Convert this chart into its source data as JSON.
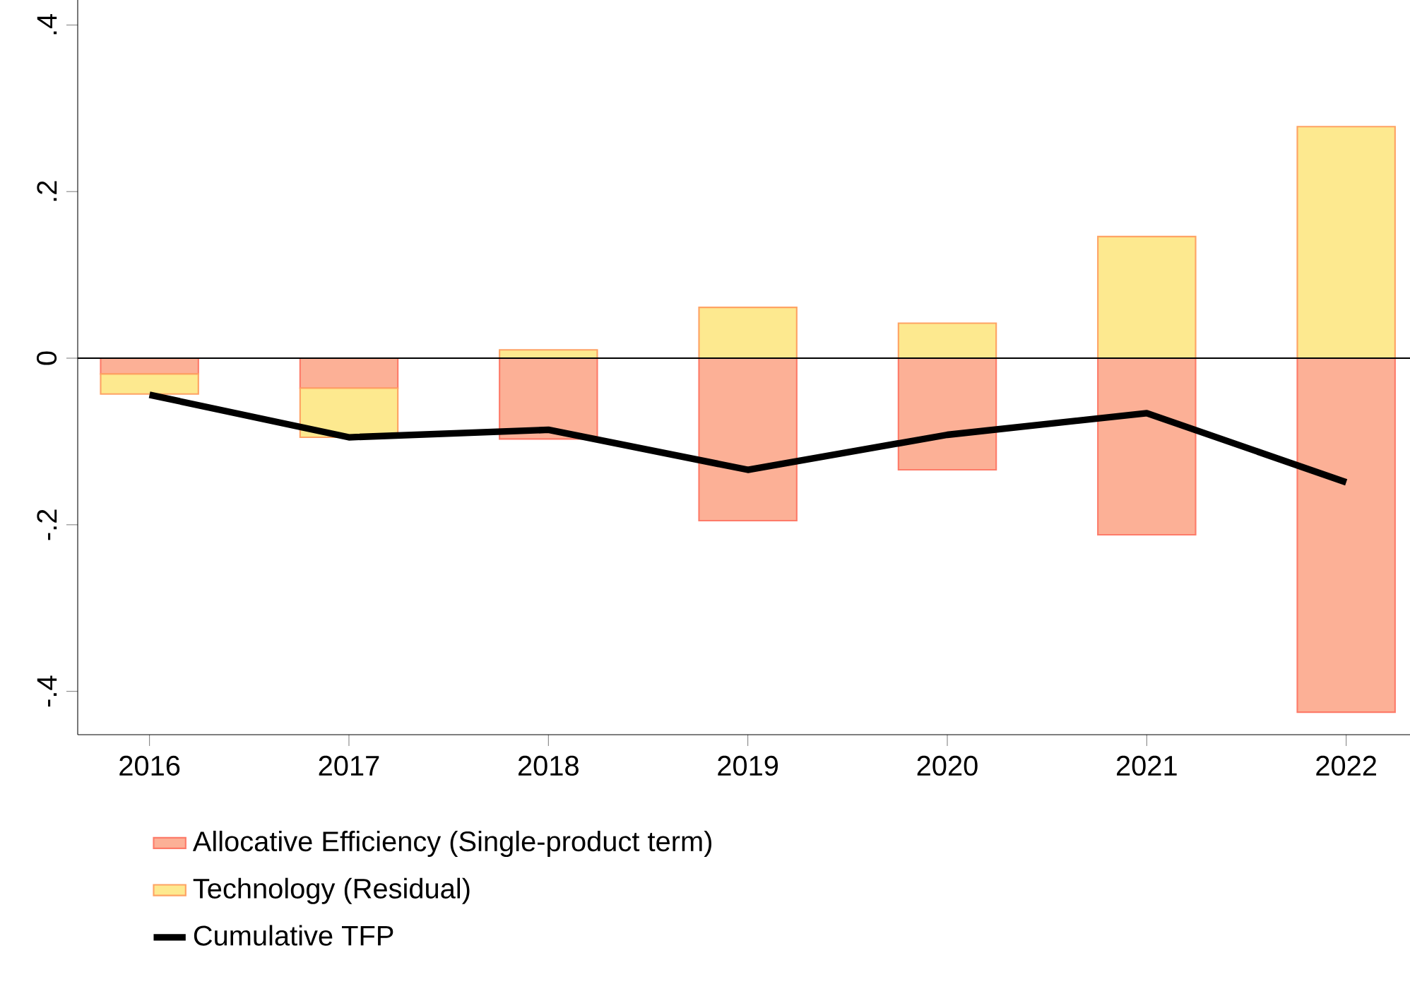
{
  "chart_data": {
    "type": "bar",
    "stacked": true,
    "categories": [
      "2016",
      "2017",
      "2018",
      "2019",
      "2020",
      "2021",
      "2022"
    ],
    "series": [
      {
        "name": "Allocative Efficiency (Single-product term)",
        "color": "#fcb096",
        "values": [
          -0.019,
          -0.036,
          -0.097,
          -0.195,
          -0.134,
          -0.212,
          -0.425
        ]
      },
      {
        "name": "Technology (Residual)",
        "color": "#fde98f",
        "values": [
          -0.024,
          -0.059,
          0.01,
          0.061,
          0.042,
          0.146,
          0.278
        ]
      },
      {
        "name": "Cumulative TFP",
        "type": "line",
        "color": "#000000",
        "values": [
          -0.044,
          -0.095,
          -0.086,
          -0.134,
          -0.092,
          -0.066,
          -0.149
        ]
      }
    ],
    "ylim": [
      -0.452,
      0.43
    ],
    "yticks": [
      {
        "value": -0.4,
        "label": "-.4"
      },
      {
        "value": -0.2,
        "label": "-.2"
      },
      0,
      {
        "value": 0.2,
        "label": ".2"
      },
      {
        "value": 0.4,
        "label": ".4"
      }
    ],
    "ref_lines": [
      {
        "axis": "y",
        "value": 0,
        "color": "#000000"
      }
    ],
    "grid": false,
    "legend": "bottom"
  }
}
